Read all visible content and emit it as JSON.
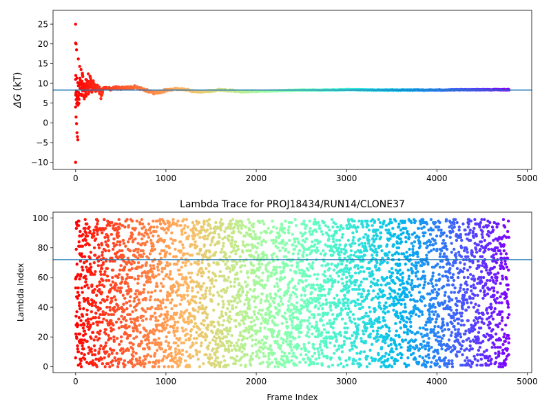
{
  "chart_data": [
    {
      "type": "scatter",
      "title": "",
      "xlabel": "",
      "ylabel": "ΔG (kT)",
      "ylabel_symbol": "ΔG",
      "ylabel_unit": "(kT)",
      "xlim": [
        -250,
        5050
      ],
      "ylim": [
        -11.8,
        28.5
      ],
      "x_ticks": [
        0,
        1000,
        2000,
        3000,
        4000,
        5000
      ],
      "y_ticks": [
        -10,
        -5,
        0,
        5,
        10,
        15,
        20,
        25
      ],
      "hline": 8.3,
      "hline_color": "#1f77b4",
      "colormap": "rainbow (red at frame 0 to violet at frame 4800)",
      "grid": false,
      "outliers": [
        {
          "x": 0,
          "y": 25.0
        },
        {
          "x": 0,
          "y": 20.2
        },
        {
          "x": 5,
          "y": 20.0
        },
        {
          "x": 10,
          "y": 18.5
        },
        {
          "x": 2,
          "y": 12.0
        },
        {
          "x": 0,
          "y": 4.0
        },
        {
          "x": 5,
          "y": 1.5
        },
        {
          "x": 10,
          "y": -0.2
        },
        {
          "x": 15,
          "y": -2.5
        },
        {
          "x": 20,
          "y": -3.5
        },
        {
          "x": 25,
          "y": -4.3
        },
        {
          "x": 0,
          "y": -10.0
        },
        {
          "x": 30,
          "y": 16.2
        },
        {
          "x": 45,
          "y": 14.3
        },
        {
          "x": 60,
          "y": 13.5
        },
        {
          "x": 75,
          "y": 12.6
        },
        {
          "x": 140,
          "y": 12.4
        },
        {
          "x": 160,
          "y": 11.8
        }
      ],
      "trend": [
        {
          "x": 20,
          "y": 7.0
        },
        {
          "x": 40,
          "y": 9.5
        },
        {
          "x": 60,
          "y": 8.0
        },
        {
          "x": 80,
          "y": 10.5
        },
        {
          "x": 100,
          "y": 7.5
        },
        {
          "x": 120,
          "y": 9.8
        },
        {
          "x": 140,
          "y": 8.4
        },
        {
          "x": 160,
          "y": 10.2
        },
        {
          "x": 180,
          "y": 8.6
        },
        {
          "x": 200,
          "y": 9.6
        },
        {
          "x": 220,
          "y": 8.5
        },
        {
          "x": 250,
          "y": 9.0
        },
        {
          "x": 280,
          "y": 7.0
        },
        {
          "x": 310,
          "y": 8.8
        },
        {
          "x": 350,
          "y": 8.7
        },
        {
          "x": 400,
          "y": 8.6
        },
        {
          "x": 450,
          "y": 8.9
        },
        {
          "x": 500,
          "y": 8.7
        },
        {
          "x": 550,
          "y": 8.8
        },
        {
          "x": 600,
          "y": 9.0
        },
        {
          "x": 650,
          "y": 9.1
        },
        {
          "x": 700,
          "y": 8.9
        },
        {
          "x": 750,
          "y": 8.5
        },
        {
          "x": 800,
          "y": 8.2
        },
        {
          "x": 850,
          "y": 7.7
        },
        {
          "x": 900,
          "y": 7.6
        },
        {
          "x": 950,
          "y": 7.9
        },
        {
          "x": 1000,
          "y": 8.2
        },
        {
          "x": 1100,
          "y": 8.6
        },
        {
          "x": 1200,
          "y": 8.5
        },
        {
          "x": 1300,
          "y": 8.0
        },
        {
          "x": 1400,
          "y": 7.9
        },
        {
          "x": 1500,
          "y": 8.1
        },
        {
          "x": 1600,
          "y": 8.4
        },
        {
          "x": 1700,
          "y": 8.2
        },
        {
          "x": 1800,
          "y": 8.0
        },
        {
          "x": 2000,
          "y": 8.0
        },
        {
          "x": 2200,
          "y": 8.1
        },
        {
          "x": 2500,
          "y": 8.3
        },
        {
          "x": 2800,
          "y": 8.3
        },
        {
          "x": 3000,
          "y": 8.4
        },
        {
          "x": 3300,
          "y": 8.3
        },
        {
          "x": 3600,
          "y": 8.3
        },
        {
          "x": 4000,
          "y": 8.3
        },
        {
          "x": 4400,
          "y": 8.4
        },
        {
          "x": 4800,
          "y": 8.4
        }
      ]
    },
    {
      "type": "scatter",
      "title": "Lambda Trace for PROJ18434/RUN14/CLONE37",
      "xlabel": "Frame Index",
      "ylabel": "Lambda Index",
      "xlim": [
        -250,
        5050
      ],
      "ylim": [
        -4,
        104
      ],
      "x_ticks": [
        0,
        1000,
        2000,
        3000,
        4000,
        5000
      ],
      "y_ticks": [
        0,
        20,
        40,
        60,
        80,
        100
      ],
      "hline": 72,
      "hline_color": "#1f77b4",
      "colormap": "rainbow (red at frame 0 to violet at frame 4800)",
      "x_range": [
        0,
        4800
      ],
      "y_range": [
        0,
        99
      ],
      "n_points": 4800,
      "grid": false
    }
  ]
}
